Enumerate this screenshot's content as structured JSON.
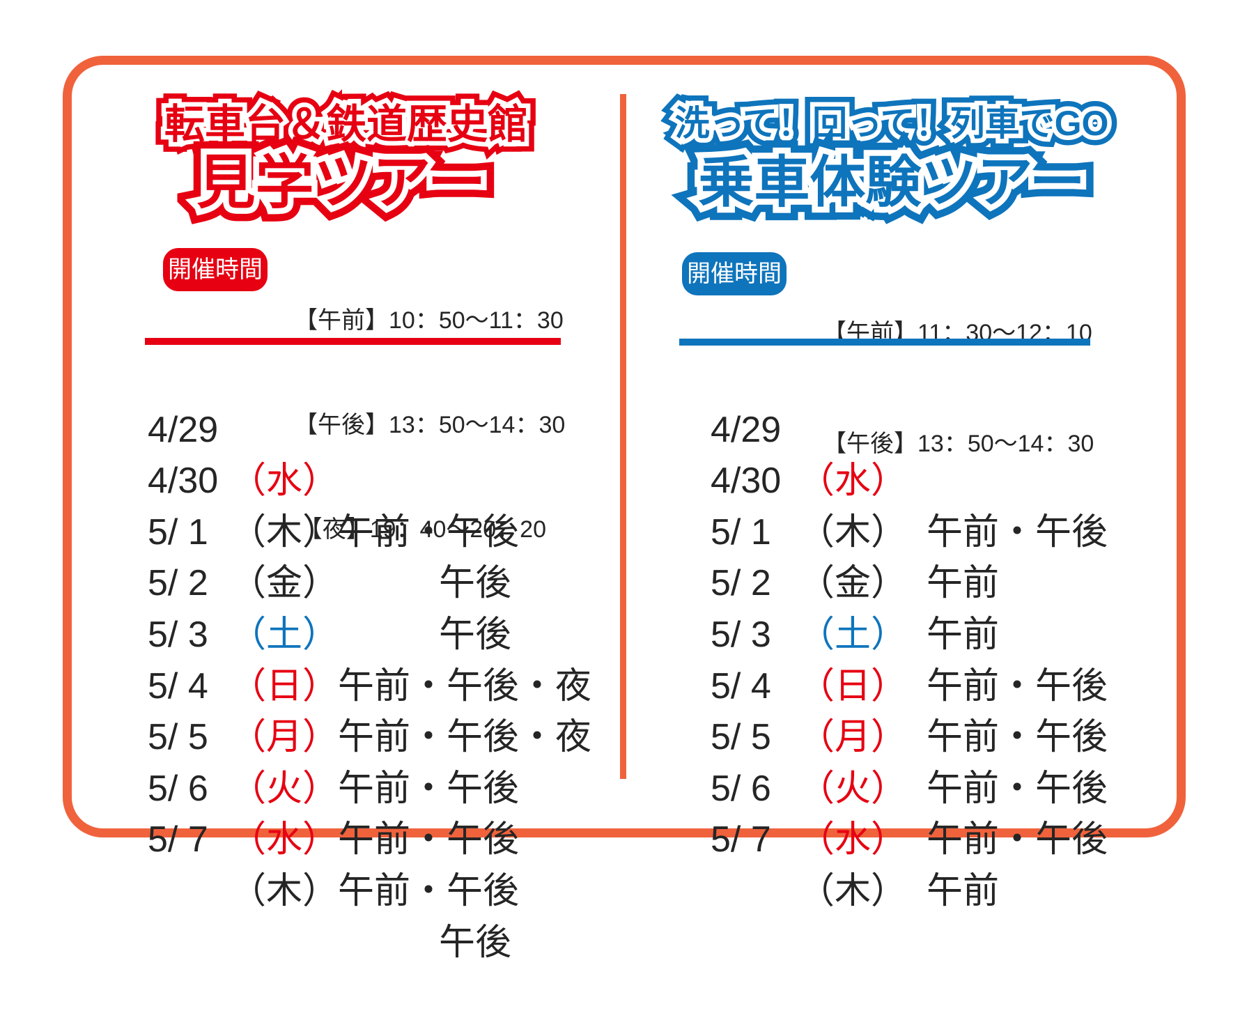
{
  "colors": {
    "red": "#e60012",
    "blue": "#0e74bc",
    "orange_border": "#f0623c",
    "text": "#252525"
  },
  "left": {
    "title_line1": "転車台＆鉄道歴史館",
    "title_line2": "見学ツアー",
    "schedule_label": "開催時間",
    "times": [
      "【午前】10：50～11：30",
      "【午後】13：50～14：30",
      "【夜】19：40～20：20"
    ],
    "rows": [
      {
        "date": "4/29",
        "day": "（水）",
        "day_color": "red",
        "sessions": "午前・午後"
      },
      {
        "date": "4/30",
        "day": "（木）",
        "day_color": "black",
        "sessions": "午後"
      },
      {
        "date": "5/ 1",
        "day": "（金）",
        "day_color": "black",
        "sessions": "午後"
      },
      {
        "date": "5/ 2",
        "day": "（土）",
        "day_color": "blue",
        "sessions": "午前・午後・夜"
      },
      {
        "date": "5/ 3",
        "day": "（日）",
        "day_color": "red",
        "sessions": "午前・午後・夜"
      },
      {
        "date": "5/ 4",
        "day": "（月）",
        "day_color": "red",
        "sessions": "午前・午後"
      },
      {
        "date": "5/ 5",
        "day": "（火）",
        "day_color": "red",
        "sessions": "午前・午後"
      },
      {
        "date": "5/ 6",
        "day": "（水）",
        "day_color": "red",
        "sessions": "午前・午後"
      },
      {
        "date": "5/ 7",
        "day": "（木）",
        "day_color": "black",
        "sessions": "午後"
      }
    ]
  },
  "right": {
    "title_line1": "洗って！回って！列車でGO",
    "title_line2": "乗車体験ツアー",
    "schedule_label": "開催時間",
    "times": [
      "【午前】11：30～12：10",
      "【午後】13：50～14：30"
    ],
    "rows": [
      {
        "date": "4/29",
        "day": "（水）",
        "day_color": "red",
        "sessions": "午前・午後"
      },
      {
        "date": "4/30",
        "day": "（木）",
        "day_color": "black",
        "sessions": "午前"
      },
      {
        "date": "5/ 1",
        "day": "（金）",
        "day_color": "black",
        "sessions": "午前"
      },
      {
        "date": "5/ 2",
        "day": "（土）",
        "day_color": "blue",
        "sessions": "午前・午後"
      },
      {
        "date": "5/ 3",
        "day": "（日）",
        "day_color": "red",
        "sessions": "午前・午後"
      },
      {
        "date": "5/ 4",
        "day": "（月）",
        "day_color": "red",
        "sessions": "午前・午後"
      },
      {
        "date": "5/ 5",
        "day": "（火）",
        "day_color": "red",
        "sessions": "午前・午後"
      },
      {
        "date": "5/ 6",
        "day": "（水）",
        "day_color": "red",
        "sessions": "午前"
      },
      {
        "date": "5/ 7",
        "day": "（木）",
        "day_color": "black",
        "sessions": ""
      }
    ]
  }
}
